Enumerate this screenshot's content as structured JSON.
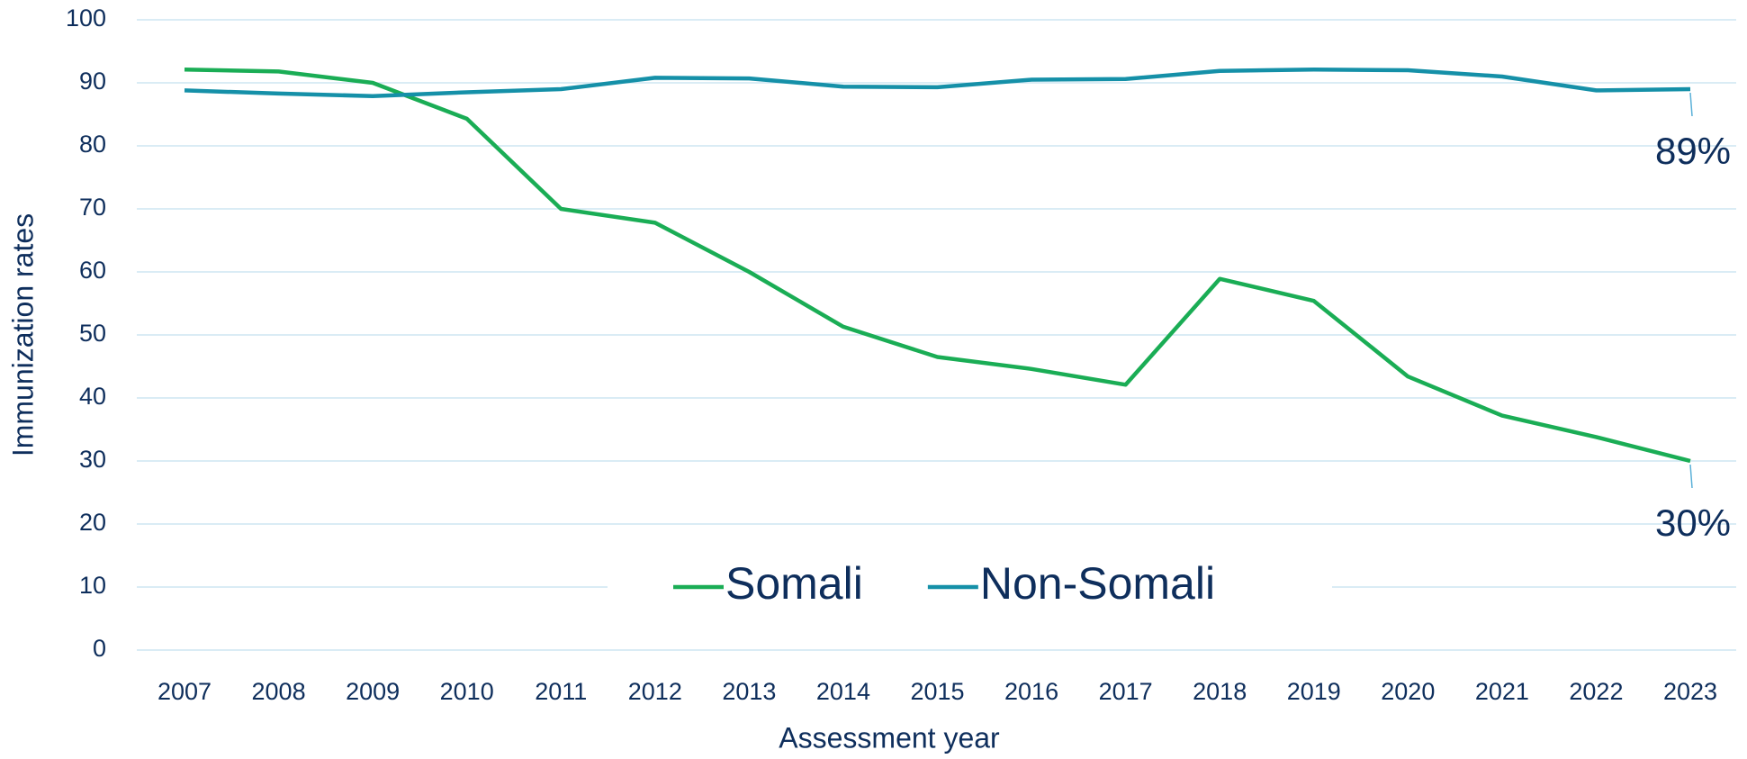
{
  "chart_data": {
    "type": "line",
    "x_label": "Assessment year",
    "y_label": "Immunization rates",
    "categories": [
      "2007",
      "2008",
      "2009",
      "2010",
      "2011",
      "2012",
      "2013",
      "2014",
      "2015",
      "2016",
      "2017",
      "2018",
      "2019",
      "2020",
      "2021",
      "2022",
      "2023"
    ],
    "series": [
      {
        "name": "Somali",
        "color": "#1aad55",
        "values": [
          92.1,
          91.8,
          90,
          84.3,
          70,
          67.8,
          60,
          51.3,
          46.5,
          44.6,
          42.1,
          58.9,
          55.4,
          43.4,
          37.2,
          33.8,
          30
        ],
        "value_labels": [
          null,
          null,
          null,
          null,
          null,
          null,
          null,
          null,
          null,
          null,
          null,
          null,
          null,
          null,
          null,
          null,
          "30%"
        ]
      },
      {
        "name": "Non-Somali",
        "color": "#1590a8",
        "values": [
          88.8,
          88.3,
          87.9,
          88.5,
          89,
          90.8,
          90.7,
          89.4,
          89.3,
          90.5,
          90.6,
          91.9,
          92.1,
          92,
          91,
          88.8,
          89
        ],
        "value_labels": [
          null,
          null,
          null,
          null,
          null,
          null,
          null,
          null,
          null,
          null,
          null,
          null,
          null,
          null,
          null,
          null,
          "89%"
        ]
      }
    ],
    "ylim": [
      0,
      100
    ],
    "yticks": [
      0,
      10,
      20,
      30,
      40,
      50,
      60,
      70,
      80,
      90,
      100
    ],
    "grid": true,
    "legend": "center"
  }
}
